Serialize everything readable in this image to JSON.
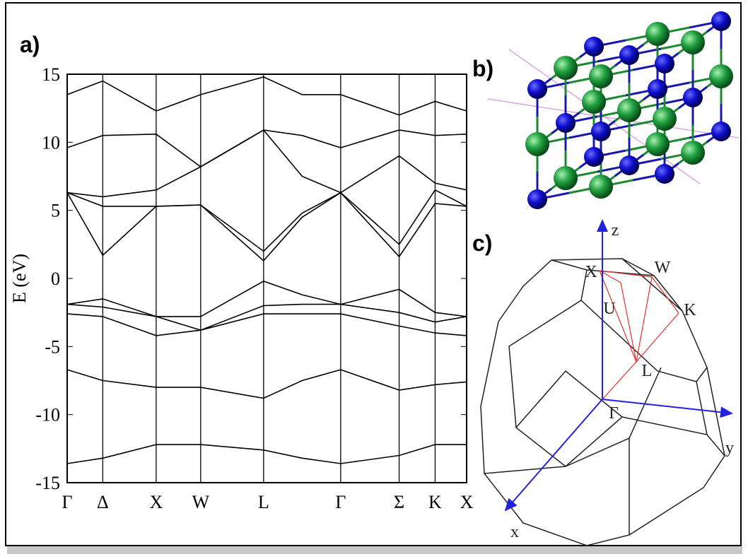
{
  "panel_labels": {
    "a": "a)",
    "b": "b)",
    "c": "c)"
  },
  "chart_data": {
    "type": "line",
    "ylabel": "E (eV)",
    "x": [
      0,
      0.4,
      1,
      1.5,
      2.207,
      2.64,
      3.073,
      3.73,
      4.134,
      4.488
    ],
    "xlim": [
      0,
      4.488
    ],
    "xticks": [
      {
        "value": 0,
        "label": "Γ"
      },
      {
        "value": 0.4,
        "label": "Δ"
      },
      {
        "value": 1,
        "label": "X"
      },
      {
        "value": 1.5,
        "label": "W"
      },
      {
        "value": 2.207,
        "label": "L"
      },
      {
        "value": 3.073,
        "label": "Γ"
      },
      {
        "value": 3.73,
        "label": "Σ"
      },
      {
        "value": 4.134,
        "label": "K"
      },
      {
        "value": 4.488,
        "label": "X"
      }
    ],
    "ylim": [
      -15,
      15
    ],
    "yticks": [
      -15,
      -10,
      -5,
      0,
      5,
      10,
      15
    ],
    "color": "#000000",
    "series": [
      {
        "values": [
          -13.6,
          -13.2,
          -12.2,
          -12.2,
          -12.6,
          -13.2,
          -13.6,
          -13,
          -12.2,
          -12.2
        ]
      },
      {
        "values": [
          -6.7,
          -7.5,
          -8,
          -8,
          -8.8,
          -7.5,
          -6.7,
          -8.2,
          -7.8,
          -7.6
        ]
      },
      {
        "values": [
          -2.6,
          -2.8,
          -4.2,
          -3.8,
          -2.6,
          -2.6,
          -2.6,
          -3.5,
          -4,
          -4.2
        ]
      },
      {
        "values": [
          -1.9,
          -1.5,
          -2.8,
          -3.8,
          -2,
          -1.9,
          -1.9,
          -2.5,
          -3.2,
          -2.8
        ]
      },
      {
        "values": [
          -1.9,
          -2.1,
          -2.8,
          -2.8,
          -0.2,
          -1.2,
          -1.9,
          -0.8,
          -2.5,
          -2.8
        ]
      },
      {
        "values": [
          6.3,
          1.7,
          5.3,
          5.4,
          1.3,
          4.5,
          6.3,
          1.6,
          5.5,
          5.3
        ]
      },
      {
        "values": [
          6.3,
          5.3,
          5.3,
          5.4,
          2,
          4.8,
          6.3,
          2.5,
          6.5,
          5.3
        ]
      },
      {
        "values": [
          6.3,
          6,
          6.5,
          8.2,
          10.9,
          7.5,
          6.3,
          9,
          7,
          6.5
        ]
      },
      {
        "values": [
          9.6,
          10.5,
          10.6,
          8.2,
          10.9,
          10.5,
          9.6,
          10.9,
          10.5,
          10.6
        ]
      },
      {
        "values": [
          13.5,
          14.5,
          12.3,
          13.5,
          14.8,
          13.5,
          13.5,
          12,
          13,
          12.3
        ]
      }
    ]
  },
  "brillouin_zone": {
    "points": [
      "z",
      "X",
      "W",
      "K",
      "U",
      "L",
      "Γ",
      "y",
      "x"
    ]
  }
}
